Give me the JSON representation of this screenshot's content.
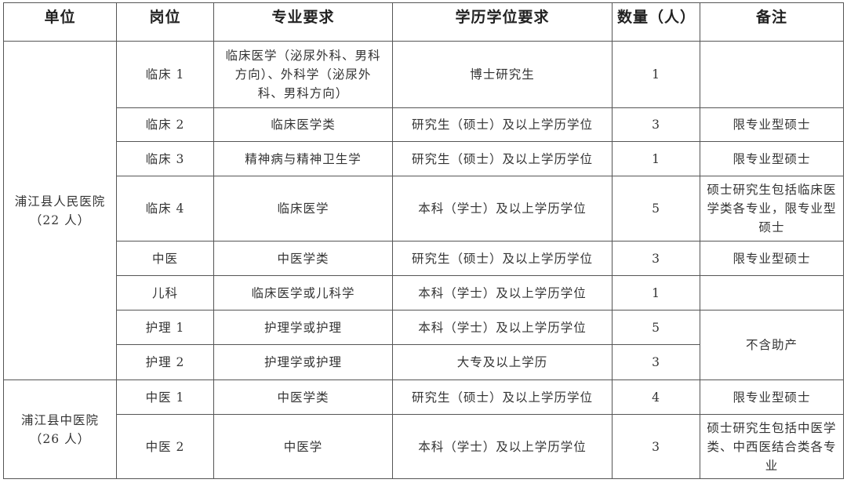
{
  "headers": [
    "单位",
    "岗位",
    "专业要求",
    "学历学位要求",
    "数量（人）",
    "备注"
  ],
  "units": [
    {
      "name": "浦江县人民医院",
      "count": "（22 人）"
    },
    {
      "name": "浦江县中医院",
      "count": "（26 人）"
    }
  ],
  "rows": [
    {
      "post": "临床 1",
      "major": "临床医学（泌尿外科、男科方向）、外科学（泌尿外科、男科方向）",
      "degree": "博士研究生",
      "num": "1",
      "note": ""
    },
    {
      "post": "临床 2",
      "major": "临床医学类",
      "degree": "研究生（硕士）及以上学历学位",
      "num": "3",
      "note": "限专业型硕士"
    },
    {
      "post": "临床 3",
      "major": "精神病与精神卫生学",
      "degree": "研究生（硕士）及以上学历学位",
      "num": "1",
      "note": "限专业型硕士"
    },
    {
      "post": "临床 4",
      "major": "临床医学",
      "degree": "本科（学士）及以上学历学位",
      "num": "5",
      "note": "硕士研究生包括临床医学类各专业，限专业型硕士"
    },
    {
      "post": "中医",
      "major": "中医学类",
      "degree": "研究生（硕士）及以上学历学位",
      "num": "3",
      "note": "限专业型硕士"
    },
    {
      "post": "儿科",
      "major": "临床医学或儿科学",
      "degree": "本科（学士）及以上学历学位",
      "num": "1",
      "note": ""
    },
    {
      "post": "护理 1",
      "major": "护理学或护理",
      "degree": "本科（学士）及以上学历学位",
      "num": "5",
      "note": "不含助产"
    },
    {
      "post": "护理 2",
      "major": "护理学或护理",
      "degree": "大专及以上学历",
      "num": "3"
    },
    {
      "post": "中医 1",
      "major": "中医学类",
      "degree": "研究生（硕士）及以上学历学位",
      "num": "4",
      "note": "限专业型硕士"
    },
    {
      "post": "中医 2",
      "major": "中医学",
      "degree": "本科（学士）及以上学历学位",
      "num": "3",
      "note": "硕士研究生包括中医学类、中西医结合类各专业"
    }
  ]
}
